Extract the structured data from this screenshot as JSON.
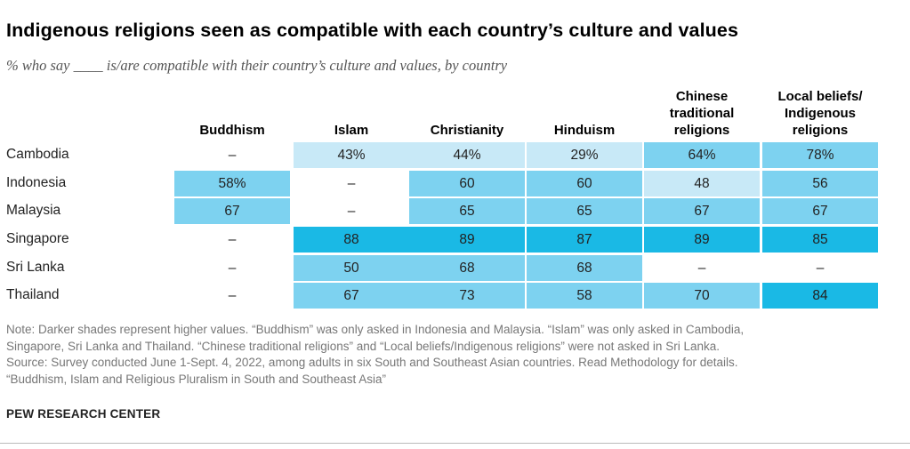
{
  "chart_data": {
    "type": "table",
    "title": "Indigenous religions seen as compatible with each country’s culture and values",
    "subtitle": "% who say ____ is/are compatible with their country’s culture and values, by country",
    "columns": [
      "Buddhism",
      "Islam",
      "Christianity",
      "Hinduism",
      "Chinese traditional religions",
      "Local beliefs/ Indigenous religions"
    ],
    "rows": [
      {
        "country": "Cambodia",
        "cells": [
          "–",
          "43%",
          "44%",
          "29%",
          "64%",
          "78%"
        ],
        "values": [
          null,
          43,
          44,
          29,
          64,
          78
        ]
      },
      {
        "country": "Indonesia",
        "cells": [
          "58%",
          "–",
          "60",
          "60",
          "48",
          "56"
        ],
        "values": [
          58,
          null,
          60,
          60,
          48,
          56
        ]
      },
      {
        "country": "Malaysia",
        "cells": [
          "67",
          "–",
          "65",
          "65",
          "67",
          "67"
        ],
        "values": [
          67,
          null,
          65,
          65,
          67,
          67
        ]
      },
      {
        "country": "Singapore",
        "cells": [
          "–",
          "88",
          "89",
          "87",
          "89",
          "85"
        ],
        "values": [
          null,
          88,
          89,
          87,
          89,
          85
        ]
      },
      {
        "country": "Sri Lanka",
        "cells": [
          "–",
          "50",
          "68",
          "68",
          "–",
          "–"
        ],
        "values": [
          null,
          50,
          68,
          68,
          null,
          null
        ]
      },
      {
        "country": "Thailand",
        "cells": [
          "–",
          "67",
          "73",
          "58",
          "70",
          "84"
        ],
        "values": [
          null,
          67,
          73,
          58,
          70,
          84
        ]
      }
    ],
    "color_scale": {
      "light": "#c8e9f7",
      "mid": "#7dd2f0",
      "dark": "#1ab9e5"
    }
  },
  "notes": [
    "Note: Darker shades represent higher values. “Buddhism” was only asked in Indonesia and Malaysia. “Islam” was only asked in Cambodia,",
    "Singapore, Sri Lanka and Thailand. “Chinese traditional religions” and “Local beliefs/Indigenous religions” were not asked in Sri Lanka.",
    "Source: Survey conducted June 1-Sept. 4, 2022, among adults in six South and Southeast Asian countries. Read Methodology for details.",
    "“Buddhism, Islam and Religious Pluralism in South and Southeast Asia”"
  ],
  "source_org": "PEW RESEARCH CENTER"
}
